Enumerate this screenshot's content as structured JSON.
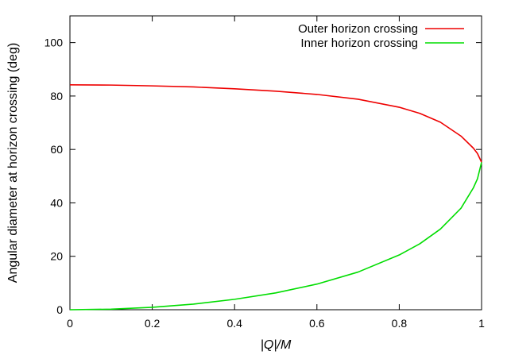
{
  "chart_data": {
    "type": "line",
    "title": "",
    "xlabel": "|Q|/M",
    "ylabel": "Angular diameter at horizon crossing (deg)",
    "xlim": [
      0,
      1
    ],
    "ylim": [
      0,
      110
    ],
    "x_ticks": [
      0,
      0.2,
      0.4,
      0.6,
      0.8,
      1
    ],
    "x_tick_labels": [
      "0",
      "0.2",
      "0.4",
      "0.6",
      "0.8",
      "1"
    ],
    "y_ticks": [
      0,
      20,
      40,
      60,
      80,
      100
    ],
    "y_tick_labels": [
      "0",
      "20",
      "40",
      "60",
      "80",
      "100"
    ],
    "grid": false,
    "legend_position": "top-right",
    "series": [
      {
        "name": "Outer horizon crossing",
        "color": "#ee0000",
        "x": [
          0,
          0.1,
          0.2,
          0.3,
          0.4,
          0.5,
          0.6,
          0.7,
          0.8,
          0.85,
          0.9,
          0.95,
          0.98,
          0.99,
          1.0
        ],
        "y": [
          84.2,
          84.1,
          83.8,
          83.4,
          82.7,
          81.8,
          80.6,
          78.8,
          75.8,
          73.5,
          70.2,
          65.0,
          60.5,
          58.5,
          55.2
        ]
      },
      {
        "name": "Inner horizon crossing",
        "color": "#00dd00",
        "x": [
          0,
          0.1,
          0.2,
          0.3,
          0.4,
          0.5,
          0.6,
          0.7,
          0.8,
          0.85,
          0.9,
          0.95,
          0.98,
          0.99,
          1.0
        ],
        "y": [
          0,
          0.2,
          0.9,
          2.1,
          3.9,
          6.3,
          9.6,
          14.1,
          20.5,
          24.7,
          30.2,
          38.0,
          45.6,
          49.0,
          55.2
        ]
      }
    ]
  }
}
